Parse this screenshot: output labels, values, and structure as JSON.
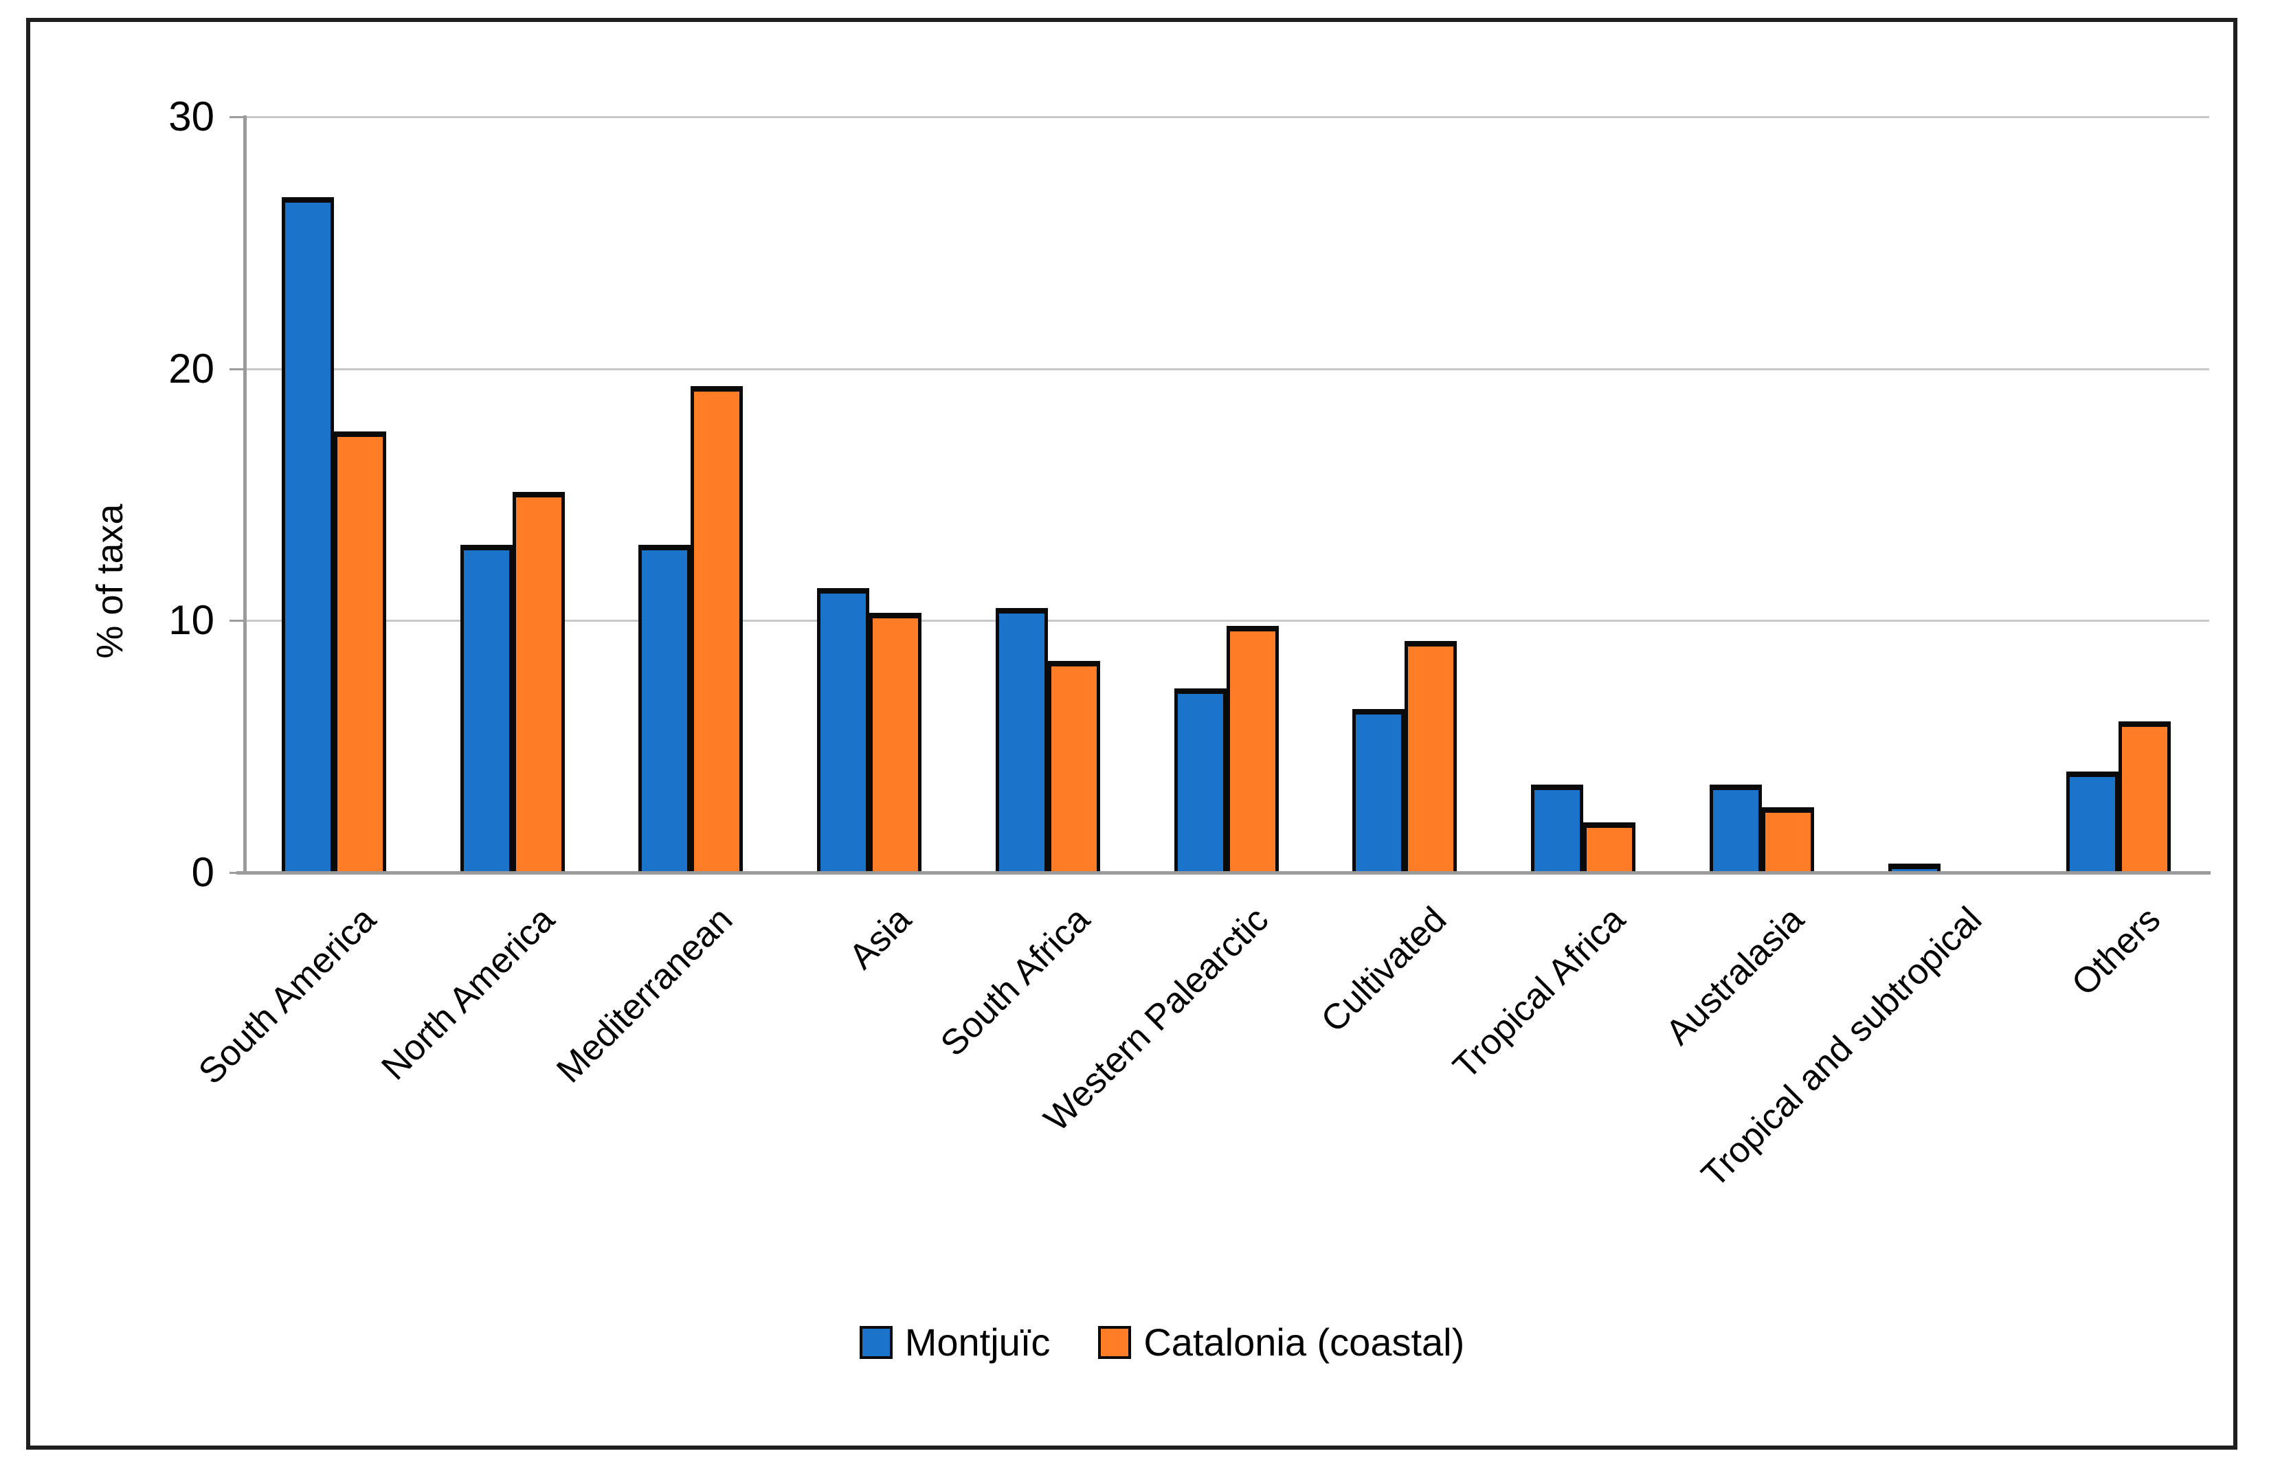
{
  "figure": {
    "background": "#ffffff",
    "border_color": "#1f1f1f"
  },
  "axes": {
    "ylabel": "% of taxa",
    "ytick_labels": [
      "0",
      "10",
      "20",
      "30"
    ],
    "gridline_color": "#c8c8c8",
    "axis_line_color": "#9b9b9b"
  },
  "legend": {
    "items": [
      {
        "label": "Montjuïc",
        "color": "#1b74c9"
      },
      {
        "label": "Catalonia (coastal)",
        "color": "#ff7d27"
      }
    ]
  },
  "chart_data": {
    "type": "bar",
    "title": "",
    "xlabel": "",
    "ylabel": "% of taxa",
    "ylim": [
      0,
      30
    ],
    "yticks": [
      0,
      10,
      20,
      30
    ],
    "grid": "horizontal",
    "legend_position": "bottom",
    "bar_border_color": "#0a0a0a",
    "categories": [
      "South America",
      "North America",
      "Mediterranean",
      "Asia",
      "South Africa",
      "Western Palearctic",
      "Cultivated",
      "Tropical Africa",
      "Australasia",
      "Tropical and subtropical",
      "Others"
    ],
    "series": [
      {
        "name": "Montjuïc",
        "color": "#1b74c9",
        "values": [
          26.8,
          13.0,
          13.0,
          11.3,
          10.5,
          7.3,
          6.5,
          3.5,
          3.5,
          0.35,
          4.0
        ]
      },
      {
        "name": "Catalonia (coastal)",
        "color": "#ff7d27",
        "values": [
          17.5,
          15.1,
          19.3,
          10.3,
          8.4,
          9.8,
          9.2,
          2.0,
          2.6,
          0,
          6.0
        ]
      }
    ]
  }
}
